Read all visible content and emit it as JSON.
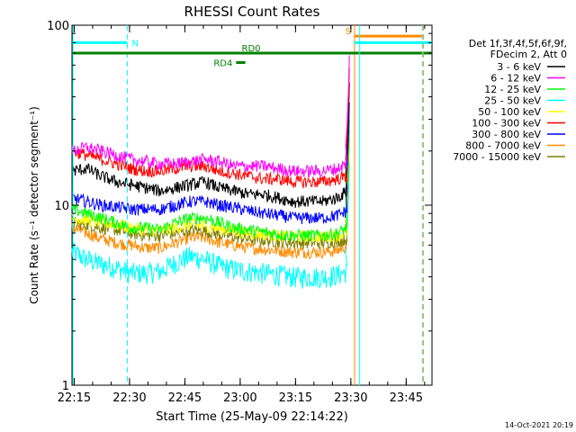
{
  "chart_data": {
    "type": "line",
    "title": "RHESSI Count Rates",
    "xlabel": "Start Time (25-May-09 22:14:22)",
    "ylabel": "Count Rate (s⁻¹ detector segment⁻¹)",
    "y_scale": "log",
    "ylim": [
      1,
      100
    ],
    "x_units": "minutes after 22:14:22",
    "xlim": [
      0,
      97.6
    ],
    "x_ticks": [
      {
        "label": "22:15",
        "value": 0.6
      },
      {
        "label": "22:30",
        "value": 15.6
      },
      {
        "label": "22:45",
        "value": 30.6
      },
      {
        "label": "23:00",
        "value": 45.6
      },
      {
        "label": "23:15",
        "value": 60.6
      },
      {
        "label": "23:30",
        "value": 75.6
      },
      {
        "label": "23:45",
        "value": 90.6
      }
    ],
    "y_ticks": [
      {
        "label": "1",
        "value": 1
      },
      {
        "label": "10",
        "value": 10
      },
      {
        "label": "100",
        "value": 100
      }
    ],
    "legend": {
      "placement": "right",
      "header": [
        "Det 1f,3f,4f,5f,6f,9f,",
        "FDecim 2, Att 0"
      ]
    },
    "series": [
      {
        "name": "3 - 6 keV",
        "color": "#000000",
        "x": [
          0,
          4,
          8,
          12,
          16,
          20,
          24,
          28,
          32,
          36,
          40,
          44,
          48,
          52,
          56,
          60,
          64,
          68,
          72,
          74.6
        ],
        "values": [
          15.5,
          16,
          14.5,
          13.5,
          13,
          12.5,
          12,
          12.5,
          13,
          13.5,
          12.5,
          12,
          11.5,
          11.5,
          11,
          10.5,
          10.5,
          10.5,
          11,
          12
        ]
      },
      {
        "name": "6 - 12 keV",
        "color": "#ff00ff",
        "x": [
          0,
          4,
          8,
          12,
          16,
          20,
          24,
          28,
          32,
          36,
          40,
          44,
          48,
          52,
          56,
          60,
          64,
          68,
          72,
          74.6
        ],
        "values": [
          20,
          21,
          20,
          19,
          18,
          17.5,
          17,
          17,
          17.5,
          18,
          17.5,
          16.5,
          16.5,
          16.5,
          16,
          15.5,
          15.5,
          15.5,
          16,
          17
        ]
      },
      {
        "name": "12 - 25 keV",
        "color": "#00ff00",
        "x": [
          0,
          4,
          8,
          12,
          16,
          20,
          24,
          28,
          32,
          36,
          40,
          44,
          48,
          52,
          56,
          60,
          64,
          68,
          72,
          74.6
        ],
        "values": [
          9.5,
          9,
          8.5,
          8,
          7.5,
          7.5,
          7.3,
          8,
          8.5,
          8.5,
          8,
          7.5,
          7.3,
          7.1,
          6.9,
          6.8,
          6.8,
          6.8,
          7,
          7.5
        ]
      },
      {
        "name": "25 - 50 keV",
        "color": "#00ffff",
        "x": [
          0,
          4,
          8,
          12,
          16,
          20,
          24,
          28,
          32,
          36,
          40,
          44,
          48,
          52,
          56,
          60,
          64,
          68,
          72,
          74.6
        ],
        "values": [
          5.5,
          5,
          4.7,
          4.5,
          4.2,
          4.2,
          4.3,
          4.8,
          5.2,
          5,
          4.6,
          4.4,
          4.3,
          4.2,
          4.1,
          4,
          4,
          4,
          4.1,
          4.3
        ]
      },
      {
        "name": "50 - 100 keV",
        "color": "#ffff00",
        "x": [
          0,
          4,
          8,
          12,
          16,
          20,
          24,
          28,
          32,
          36,
          40,
          44,
          48,
          52,
          56,
          60,
          64,
          68,
          72,
          74.6
        ],
        "values": [
          8.5,
          8.3,
          8,
          7.8,
          7.5,
          7.3,
          7.2,
          7.5,
          7.8,
          7.7,
          7.4,
          7.2,
          7,
          6.9,
          6.8,
          6.7,
          6.7,
          6.7,
          6.8,
          7
        ]
      },
      {
        "name": "100 - 300 keV",
        "color": "#ff0000",
        "x": [
          0,
          4,
          8,
          12,
          16,
          20,
          24,
          28,
          32,
          36,
          40,
          44,
          48,
          52,
          56,
          60,
          64,
          68,
          72,
          74.6
        ],
        "values": [
          20,
          19,
          18,
          17,
          16,
          15.5,
          15.5,
          16,
          16.5,
          16.5,
          15.5,
          15,
          14.5,
          14,
          14,
          13.5,
          13.5,
          13.5,
          14,
          14.5
        ]
      },
      {
        "name": "300 - 800 keV",
        "color": "#0000ff",
        "x": [
          0,
          4,
          8,
          12,
          16,
          20,
          24,
          28,
          32,
          36,
          40,
          44,
          48,
          52,
          56,
          60,
          64,
          68,
          72,
          74.6
        ],
        "values": [
          11,
          10.5,
          10,
          9.8,
          9.5,
          9.5,
          9.5,
          10,
          10.5,
          10.5,
          10,
          9.7,
          9.3,
          9,
          8.8,
          8.5,
          8.5,
          8.5,
          8.8,
          9.3
        ]
      },
      {
        "name": "800 - 7000 keV",
        "color": "#ff8c00",
        "x": [
          0,
          4,
          8,
          12,
          16,
          20,
          24,
          28,
          32,
          36,
          40,
          44,
          48,
          52,
          56,
          60,
          64,
          68,
          72,
          74.6
        ],
        "values": [
          7.5,
          7,
          6.5,
          6.2,
          6,
          5.8,
          5.8,
          6.2,
          6.6,
          6.6,
          6.2,
          6,
          5.8,
          5.7,
          5.6,
          5.5,
          5.5,
          5.5,
          5.6,
          6
        ]
      },
      {
        "name": "7000 - 15000 keV",
        "color": "#808000",
        "x": [
          0,
          4,
          8,
          12,
          16,
          20,
          24,
          28,
          32,
          36,
          40,
          44,
          48,
          52,
          56,
          60,
          64,
          68,
          72,
          74.6
        ],
        "values": [
          8,
          7.8,
          7.5,
          7.3,
          7,
          6.8,
          6.8,
          7,
          7.3,
          7.2,
          6.9,
          6.7,
          6.5,
          6.4,
          6.3,
          6.2,
          6.2,
          6.2,
          6.3,
          6.5
        ]
      }
    ],
    "flare_spike": {
      "x": [
        74.2,
        74.6,
        75.0,
        75.2
      ],
      "values": [
        15,
        20,
        33,
        48
      ]
    },
    "annotations": [
      {
        "label": "N",
        "color": "#00ffff",
        "segment_x": [
          0,
          15
        ],
        "y": 80,
        "vline_x": 15,
        "vline_style": "dashed"
      },
      {
        "label": "S",
        "color": "#ff8c00",
        "segment_x": [
          76.6,
          95
        ],
        "y": 87,
        "vline_x": 76.6,
        "vline_style": "solid"
      },
      {
        "label": "RD0",
        "color": "#008000",
        "segment_x": [
          0,
          97.6
        ],
        "y": 70
      },
      {
        "label": "RD4",
        "color": "#008000",
        "segment_x": [
          44.5,
          47
        ],
        "y": 62
      }
    ],
    "extra_lines": {
      "cyan_segment": {
        "x": [
          76.6,
          97.6
        ],
        "y": 80
      },
      "cyan_vlines": [
        {
          "x": 0,
          "style": "solid"
        },
        {
          "x": 78,
          "style": "solid"
        },
        {
          "x": 95,
          "style": "dashed"
        }
      ],
      "orange_vlines": [
        {
          "x": 95,
          "style": "dashed"
        }
      ]
    }
  },
  "footer": {
    "date_stamp": "14-Oct-2021 20:19"
  }
}
